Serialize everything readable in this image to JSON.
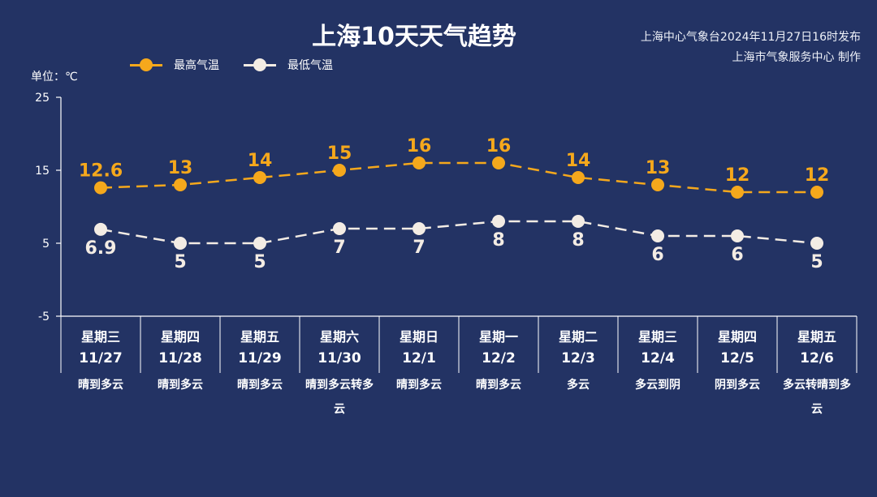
{
  "header": {
    "title": "上海10天天气趋势",
    "issuer_line1": "上海中心气象台2024年11月27日16时发布",
    "issuer_line2": "上海市气象服务中心 制作",
    "unit": "单位：℃"
  },
  "legend": [
    {
      "label": "最高气温",
      "color": "#f5a81c"
    },
    {
      "label": "最低气温",
      "color": "#f3ece4"
    }
  ],
  "colors": {
    "background": "#233364",
    "high": "#f5a81c",
    "low": "#f3ece4",
    "axis": "#ffffff"
  },
  "days": [
    {
      "weekday": "星期三",
      "date": "11/27",
      "weather": "晴到多云"
    },
    {
      "weekday": "星期四",
      "date": "11/28",
      "weather": "晴到多云"
    },
    {
      "weekday": "星期五",
      "date": "11/29",
      "weather": "晴到多云"
    },
    {
      "weekday": "星期六",
      "date": "11/30",
      "weather": "晴到多云转多云"
    },
    {
      "weekday": "星期日",
      "date": "12/1",
      "weather": "晴到多云"
    },
    {
      "weekday": "星期一",
      "date": "12/2",
      "weather": "晴到多云"
    },
    {
      "weekday": "星期二",
      "date": "12/3",
      "weather": "多云"
    },
    {
      "weekday": "星期三",
      "date": "12/4",
      "weather": "多云到阴"
    },
    {
      "weekday": "星期四",
      "date": "12/5",
      "weather": "阴到多云"
    },
    {
      "weekday": "星期五",
      "date": "12/6",
      "weather": "多云转晴到多云"
    }
  ],
  "chart_data": {
    "type": "line",
    "title": "上海10天天气趋势",
    "xlabel": "",
    "ylabel": "单位：℃",
    "categories": [
      "星期三 11/27",
      "星期四 11/28",
      "星期五 11/29",
      "星期六 11/30",
      "星期日 12/1",
      "星期一 12/2",
      "星期二 12/3",
      "星期三 12/4",
      "星期四 12/5",
      "星期五 12/6"
    ],
    "series": [
      {
        "name": "最高气温",
        "values": [
          12.6,
          13,
          14,
          15,
          16,
          16,
          14,
          13,
          12,
          12
        ],
        "labels": [
          "12.6",
          "13",
          "14",
          "15",
          "16",
          "16",
          "14",
          "13",
          "12",
          "12"
        ],
        "color": "#f5a81c",
        "style": "dashed"
      },
      {
        "name": "最低气温",
        "values": [
          6.9,
          5,
          5,
          7,
          7,
          8,
          8,
          6,
          6,
          5
        ],
        "labels": [
          "6.9",
          "5",
          "5",
          "7",
          "7",
          "8",
          "8",
          "6",
          "6",
          "5"
        ],
        "color": "#f3ece4",
        "style": "dashed"
      }
    ],
    "yticks": [
      -5,
      5,
      15,
      25
    ],
    "ylim": [
      -5,
      25
    ],
    "grid": false,
    "legend_position": "top-left"
  }
}
